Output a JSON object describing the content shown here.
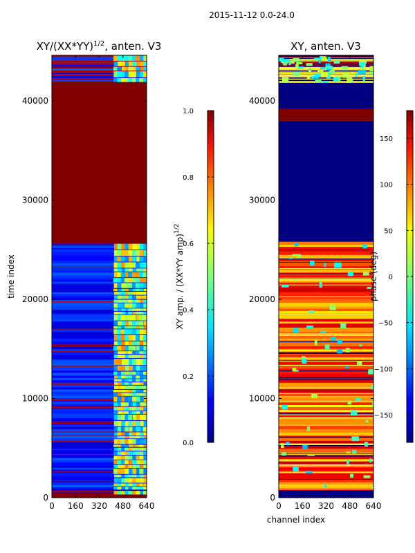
{
  "figure_title": "2015-11-12 0.0-24.0",
  "chart_data": [
    {
      "type": "heatmap",
      "panel_id": "amplitude",
      "title_main": "XY/(XX*YY)",
      "title_sup": "1/2",
      "title_suffix": ", anten. V3",
      "xlabel": "",
      "ylabel": "time index",
      "xlim": [
        0,
        640
      ],
      "ylim": [
        0,
        44600
      ],
      "xticks": [
        0,
        160,
        320,
        480,
        640
      ],
      "yticks": [
        0,
        10000,
        20000,
        30000,
        40000
      ],
      "colorbar": {
        "label_main": "XY amp. / (XX*YY amp)",
        "label_sup": "1/2",
        "range": [
          0.0,
          1.0
        ],
        "ticks": [
          "0.0",
          "0.2",
          "0.4",
          "0.6",
          "0.8",
          "1.0"
        ],
        "colormap": "jet"
      },
      "regions": [
        {
          "y": [
            0,
            600
          ],
          "value": "1.0"
        },
        {
          "y": [
            600,
            800
          ],
          "value": "0.1"
        },
        {
          "y": [
            800,
            25600
          ],
          "value": "0.15"
        },
        {
          "y": [
            25600,
            42000
          ],
          "value": "1.0"
        },
        {
          "y": [
            42000,
            44600
          ],
          "value": "0.15"
        }
      ]
    },
    {
      "type": "heatmap",
      "panel_id": "phase",
      "title_main": "XY, anten. V3",
      "xlabel": "channel index",
      "ylabel": "",
      "xlim": [
        0,
        640
      ],
      "ylim": [
        0,
        44600
      ],
      "xticks": [
        0,
        160,
        320,
        480,
        640
      ],
      "yticks": [
        0,
        10000,
        20000,
        30000,
        40000
      ],
      "colorbar": {
        "label_main": "phase (deg)",
        "range": [
          -180,
          180
        ],
        "ticks": [
          "−150",
          "−100",
          "−50",
          "0",
          "50",
          "100",
          "150"
        ],
        "tick_values": [
          -150,
          -100,
          -50,
          0,
          50,
          100,
          150
        ],
        "colormap": "jet"
      },
      "regions": [
        {
          "y": [
            0,
            800
          ],
          "value": "-180"
        },
        {
          "y": [
            800,
            25800
          ],
          "value": "120"
        },
        {
          "y": [
            25800,
            38000
          ],
          "value": "-180"
        },
        {
          "y": [
            38000,
            39200
          ],
          "value": "180"
        },
        {
          "y": [
            39200,
            42000
          ],
          "value": "-180"
        },
        {
          "y": [
            42000,
            44600
          ],
          "value": "120"
        }
      ]
    }
  ],
  "colors": {
    "jet_dark_red": "#800000",
    "jet_red": "#ff0000",
    "jet_orange": "#ff8000",
    "jet_yellow": "#ffff00",
    "jet_cyan": "#00ffff",
    "jet_blue": "#0000ff",
    "jet_dark_blue": "#000080"
  }
}
